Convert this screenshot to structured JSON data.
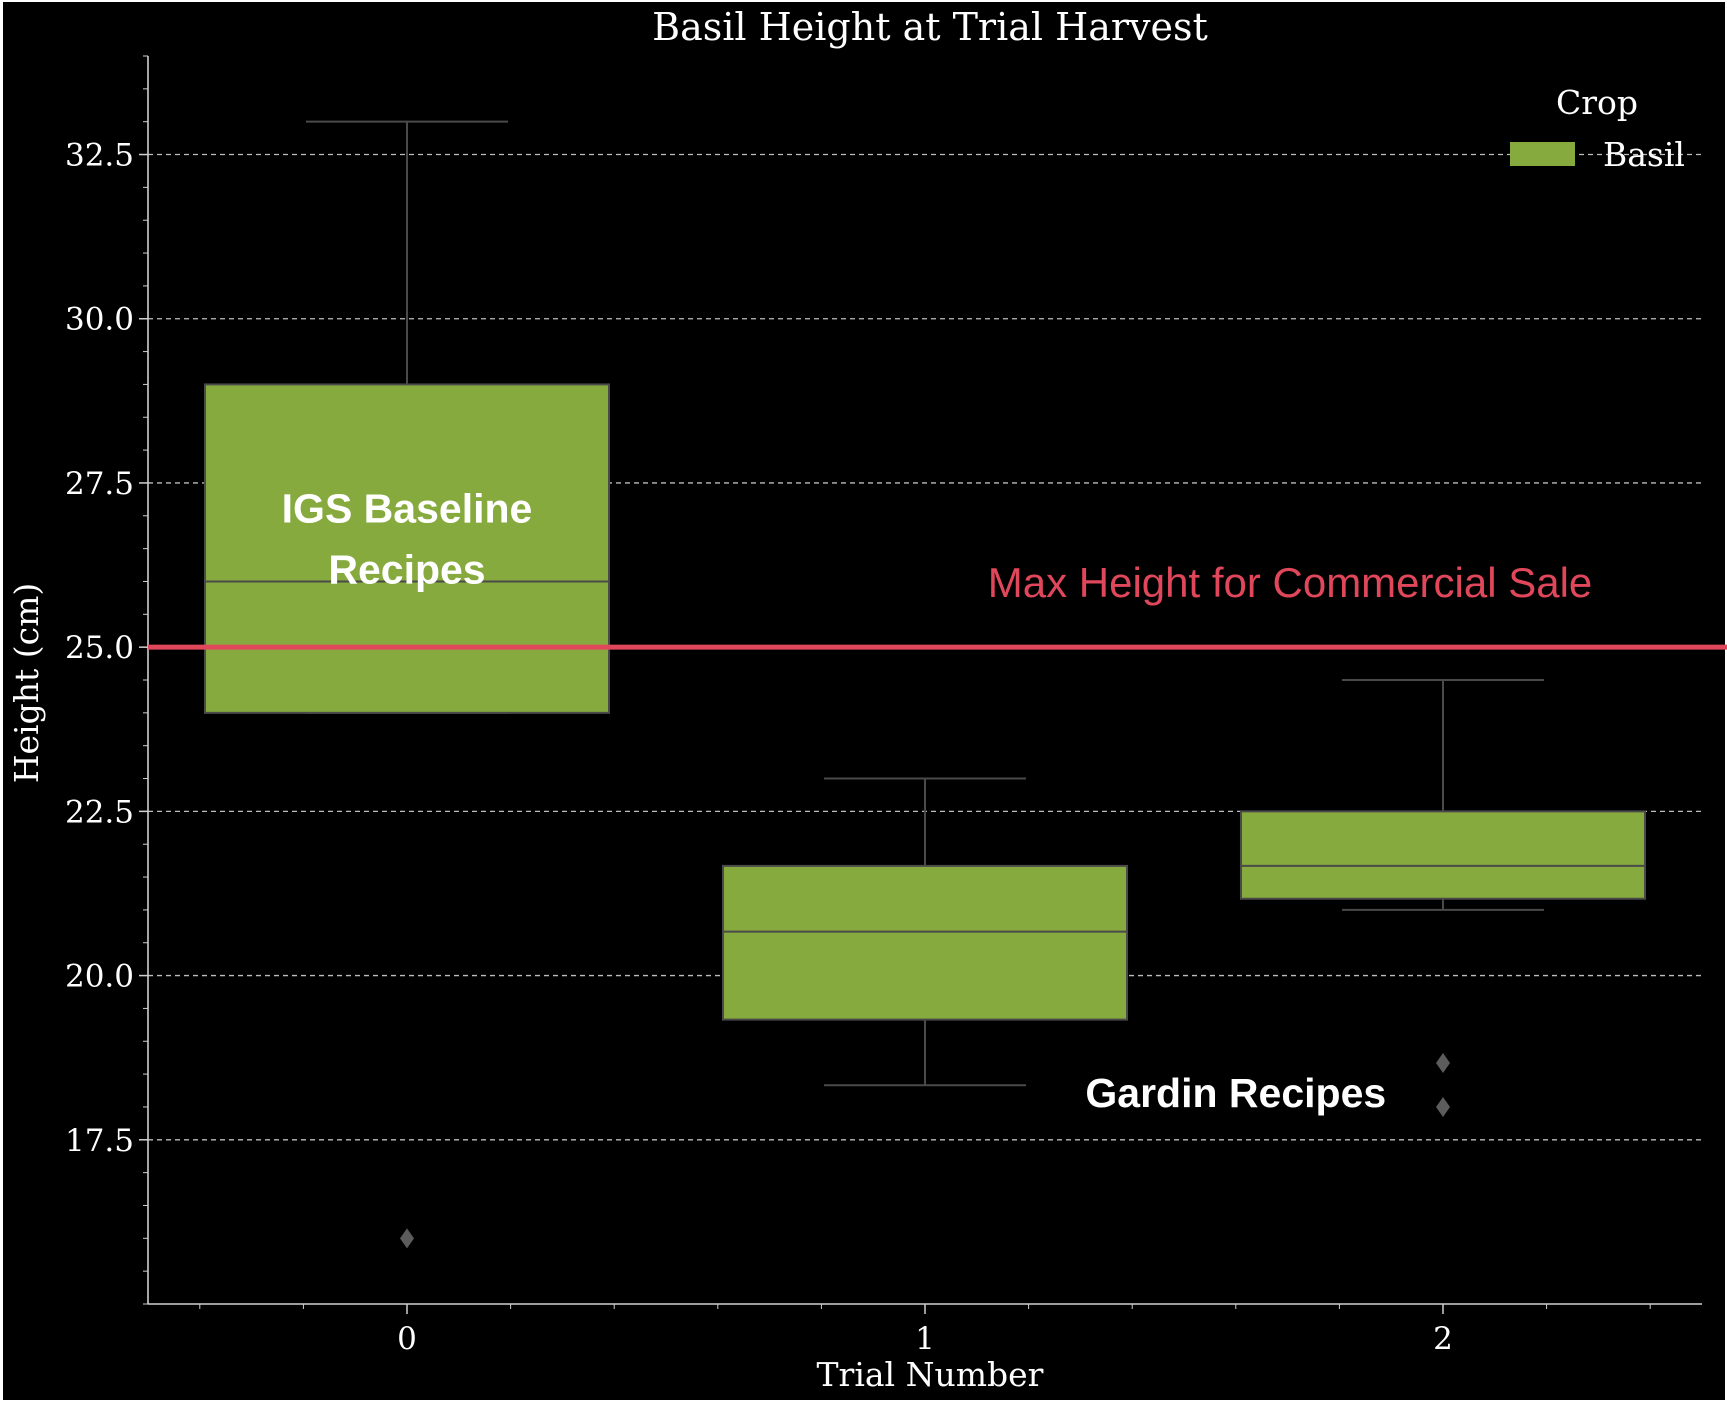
{
  "chart_data": {
    "type": "box",
    "title": "Basil Height at Trial Harvest",
    "xlabel": "Trial Number",
    "ylabel": "Height (cm)",
    "categories": [
      "0",
      "1",
      "2"
    ],
    "ylim": [
      15.0,
      34.0
    ],
    "yticks": [
      "17.5",
      "20.0",
      "22.5",
      "25.0",
      "27.5",
      "30.0",
      "32.5"
    ],
    "grid": "horizontal dashed",
    "legend": {
      "title": "Crop",
      "entries": [
        "Basil"
      ],
      "placement": "top-right"
    },
    "series": [
      {
        "name": "Basil",
        "color": "#86aa3d",
        "boxes": [
          {
            "category": "0",
            "whisker_low": 24.0,
            "q1": 24.0,
            "median": 26.0,
            "q3": 29.0,
            "whisker_high": 33.0,
            "outliers": [
              16.0
            ]
          },
          {
            "category": "1",
            "whisker_low": 18.33,
            "q1": 19.33,
            "median": 20.67,
            "q3": 21.67,
            "whisker_high": 23.0,
            "outliers": []
          },
          {
            "category": "2",
            "whisker_low": 21.0,
            "q1": 21.17,
            "median": 21.67,
            "q3": 22.5,
            "whisker_high": 24.5,
            "outliers": [
              18.0,
              18.67
            ]
          }
        ]
      }
    ],
    "reference_line": {
      "value": 25.0,
      "label": "Max Height for Commercial Sale",
      "color": "#e0475b"
    },
    "annotations": [
      {
        "lines": [
          "IGS Baseline",
          "Recipes"
        ],
        "category": "0",
        "y": 26.9,
        "color": "#ffffff"
      },
      {
        "lines": [
          "Gardin Recipes"
        ],
        "category": "1.6",
        "y": 18.0,
        "color": "#ffffff"
      }
    ],
    "colors": {
      "background": "#000000",
      "axes": "#cfcfcf",
      "text": "#ffffff",
      "box_edge": "#4a4a4a",
      "outlier": "#5c5c5c",
      "grid": "#bdbdbd"
    }
  }
}
